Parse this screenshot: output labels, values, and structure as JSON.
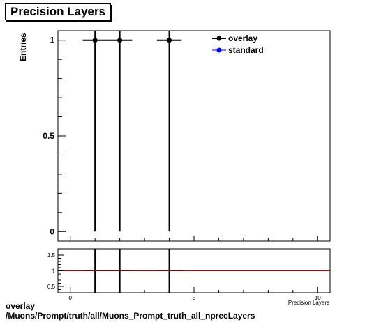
{
  "title": "Precision Layers",
  "footer": {
    "line1": "overlay",
    "line2": "/Muons/Prompt/truth/all/Muons_Prompt_truth_all_nprecLayers"
  },
  "colors": {
    "overlay": "#000000",
    "standard": "#0000ff",
    "ratio_line": "#cc0000"
  },
  "chart_data": [
    {
      "type": "scatter",
      "title": "Precision Layers",
      "ylabel": "Entries",
      "xlim": [
        -0.5,
        10.5
      ],
      "ylim": [
        -0.05,
        1.05
      ],
      "yticks": [
        0,
        0.5,
        1
      ],
      "ytick_labels": [
        "0",
        "0.5",
        "1"
      ],
      "legend_position": "top-right",
      "grid": false,
      "series": [
        {
          "name": "overlay",
          "x": [
            1,
            2,
            4
          ],
          "y": [
            1,
            1,
            1
          ],
          "y_err": [
            1,
            1,
            1
          ],
          "x_err": [
            0.5,
            0.5,
            0.5
          ]
        },
        {
          "name": "standard",
          "x": [],
          "y": []
        }
      ]
    },
    {
      "type": "scatter",
      "xlabel": "Precision Layers",
      "xlim": [
        -0.5,
        10.5
      ],
      "ylim": [
        0.3,
        1.7
      ],
      "xticks": [
        0,
        5,
        10
      ],
      "xtick_labels": [
        "0",
        "5",
        "10"
      ],
      "yticks": [
        0.5,
        1,
        1.5
      ],
      "ytick_labels": [
        "0.5",
        "1",
        "1.5"
      ],
      "reference_line": 1,
      "series": [
        {
          "name": "ratio",
          "x": [
            1,
            2,
            4
          ],
          "y": [
            1,
            1,
            1
          ],
          "x_err": [
            0.5,
            0.5,
            0.5
          ]
        }
      ]
    }
  ]
}
